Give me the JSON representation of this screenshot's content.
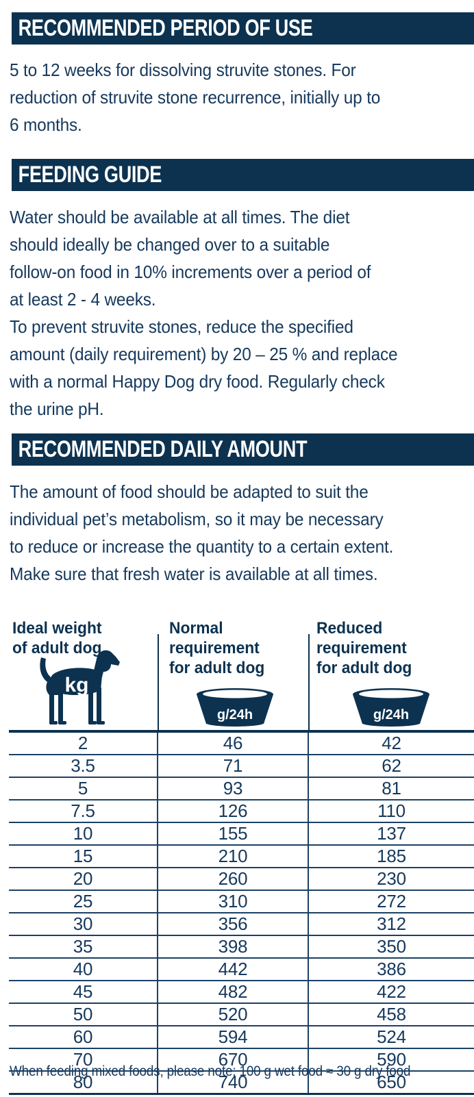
{
  "colors": {
    "navy_bar": "#0c3250",
    "navy_text": "#16395c",
    "table_line": "#1b4064",
    "white": "#ffffff"
  },
  "sections": [
    {
      "title": "RECOMMENDED PERIOD OF USE",
      "body": "5 to 12 weeks for dissolving struvite stones. For\nreduction of struvite stone recurrence, initially up to\n6 months."
    },
    {
      "title": "FEEDING GUIDE",
      "body": "Water should be available at all times. The diet\nshould ideally be changed over to a suitable\nfollow-on food in 10% increments over a period of\nat least 2 - 4 weeks.\nTo prevent struvite stones, reduce the specified\namount (daily requirement) by 20 – 25 % and replace\nwith a normal Happy Dog dry food. Regularly check\nthe urine pH."
    },
    {
      "title": "RECOMMENDED DAILY AMOUNT",
      "body": "The amount of food should be adapted to suit the\nindividual pet’s metabolism, so it may be necessary\nto reduce or increase the quantity to a certain extent.\nMake sure that fresh water is available at all times."
    }
  ],
  "table": {
    "columns": [
      {
        "header": "Ideal weight\nof adult dog",
        "icon": "dog-icon",
        "icon_label": "kg"
      },
      {
        "header": "Normal\nrequirement\nfor adult dog",
        "icon": "bowl-icon",
        "icon_label": "g/24h"
      },
      {
        "header": "Reduced\nrequirement\nfor adult dog",
        "icon": "bowl-icon",
        "icon_label": "g/24h"
      }
    ],
    "rows": [
      [
        "2",
        "46",
        "42"
      ],
      [
        "3.5",
        "71",
        "62"
      ],
      [
        "5",
        "93",
        "81"
      ],
      [
        "7.5",
        "126",
        "110"
      ],
      [
        "10",
        "155",
        "137"
      ],
      [
        "15",
        "210",
        "185"
      ],
      [
        "20",
        "260",
        "230"
      ],
      [
        "25",
        "310",
        "272"
      ],
      [
        "30",
        "356",
        "312"
      ],
      [
        "35",
        "398",
        "350"
      ],
      [
        "40",
        "442",
        "386"
      ],
      [
        "45",
        "482",
        "422"
      ],
      [
        "50",
        "520",
        "458"
      ],
      [
        "60",
        "594",
        "524"
      ],
      [
        "70",
        "670",
        "590"
      ],
      [
        "80",
        "740",
        "650"
      ]
    ]
  },
  "footnote": "When feeding mixed foods, please note: 100 g wet food ≈ 30 g dry food"
}
